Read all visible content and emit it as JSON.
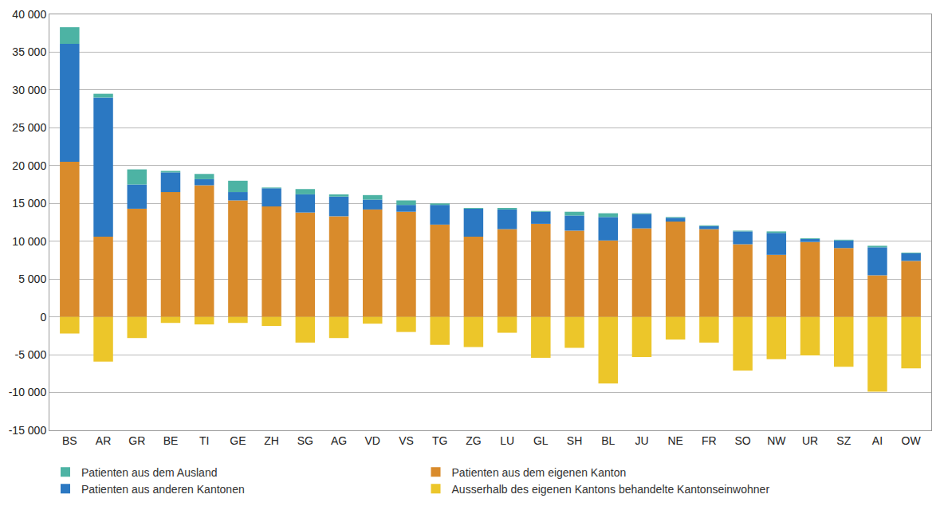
{
  "chart_data": {
    "type": "bar",
    "stacked": true,
    "grid": true,
    "legend": "bottom",
    "categories": [
      "BS",
      "AR",
      "GR",
      "BE",
      "TI",
      "GE",
      "ZH",
      "SG",
      "AG",
      "VD",
      "VS",
      "TG",
      "ZG",
      "LU",
      "GL",
      "SH",
      "BL",
      "JU",
      "NE",
      "FR",
      "SO",
      "NW",
      "UR",
      "SZ",
      "AI",
      "OW"
    ],
    "series": [
      {
        "name": "Patienten aus dem eigenen Kanton",
        "color": "#d98b2b",
        "values": [
          20500,
          10600,
          14300,
          16500,
          17400,
          15400,
          14600,
          13800,
          13300,
          14200,
          13900,
          12200,
          10600,
          11600,
          12300,
          11400,
          10100,
          11700,
          12600,
          11600,
          9600,
          8200,
          9900,
          9100,
          5500,
          7400
        ]
      },
      {
        "name": "Patienten aus anderen Kantonen",
        "color": "#2b78c2",
        "values": [
          15600,
          18400,
          3200,
          2600,
          800,
          1100,
          2400,
          2400,
          2600,
          1300,
          900,
          2600,
          3700,
          2600,
          1600,
          2000,
          3100,
          1900,
          500,
          400,
          1700,
          2900,
          400,
          1000,
          3700,
          1000
        ]
      },
      {
        "name": "Patienten aus dem Ausland",
        "color": "#4db3a4",
        "values": [
          2200,
          500,
          2000,
          200,
          700,
          1500,
          100,
          700,
          300,
          600,
          600,
          200,
          100,
          200,
          100,
          500,
          500,
          100,
          100,
          100,
          100,
          200,
          100,
          100,
          200,
          100
        ]
      },
      {
        "name": "Ausserhalb des eigenen Kantons behandelte Kantonseinwohner",
        "color": "#ecc62a",
        "values": [
          -2200,
          -5900,
          -2800,
          -800,
          -1000,
          -800,
          -1200,
          -3400,
          -2800,
          -900,
          -2000,
          -3700,
          -4000,
          -2100,
          -5400,
          -4100,
          -8800,
          -5300,
          -3000,
          -3400,
          -7100,
          -5600,
          -5100,
          -6600,
          -9900,
          -6800
        ]
      }
    ],
    "ylim": [
      -15000,
      40000
    ],
    "yticks": [
      {
        "value": -15000,
        "label": "-15 000"
      },
      {
        "value": -10000,
        "label": "-10 000"
      },
      {
        "value": -5000,
        "label": "-5 000"
      },
      0,
      {
        "value": 5000,
        "label": "5 000"
      },
      {
        "value": 10000,
        "label": "10 000"
      },
      {
        "value": 15000,
        "label": "15 000"
      },
      {
        "value": 20000,
        "label": "20 000"
      },
      {
        "value": 25000,
        "label": "25 000"
      },
      {
        "value": 30000,
        "label": "30 000"
      },
      {
        "value": 35000,
        "label": "35 000"
      },
      {
        "value": 40000,
        "label": "40 000"
      }
    ]
  }
}
